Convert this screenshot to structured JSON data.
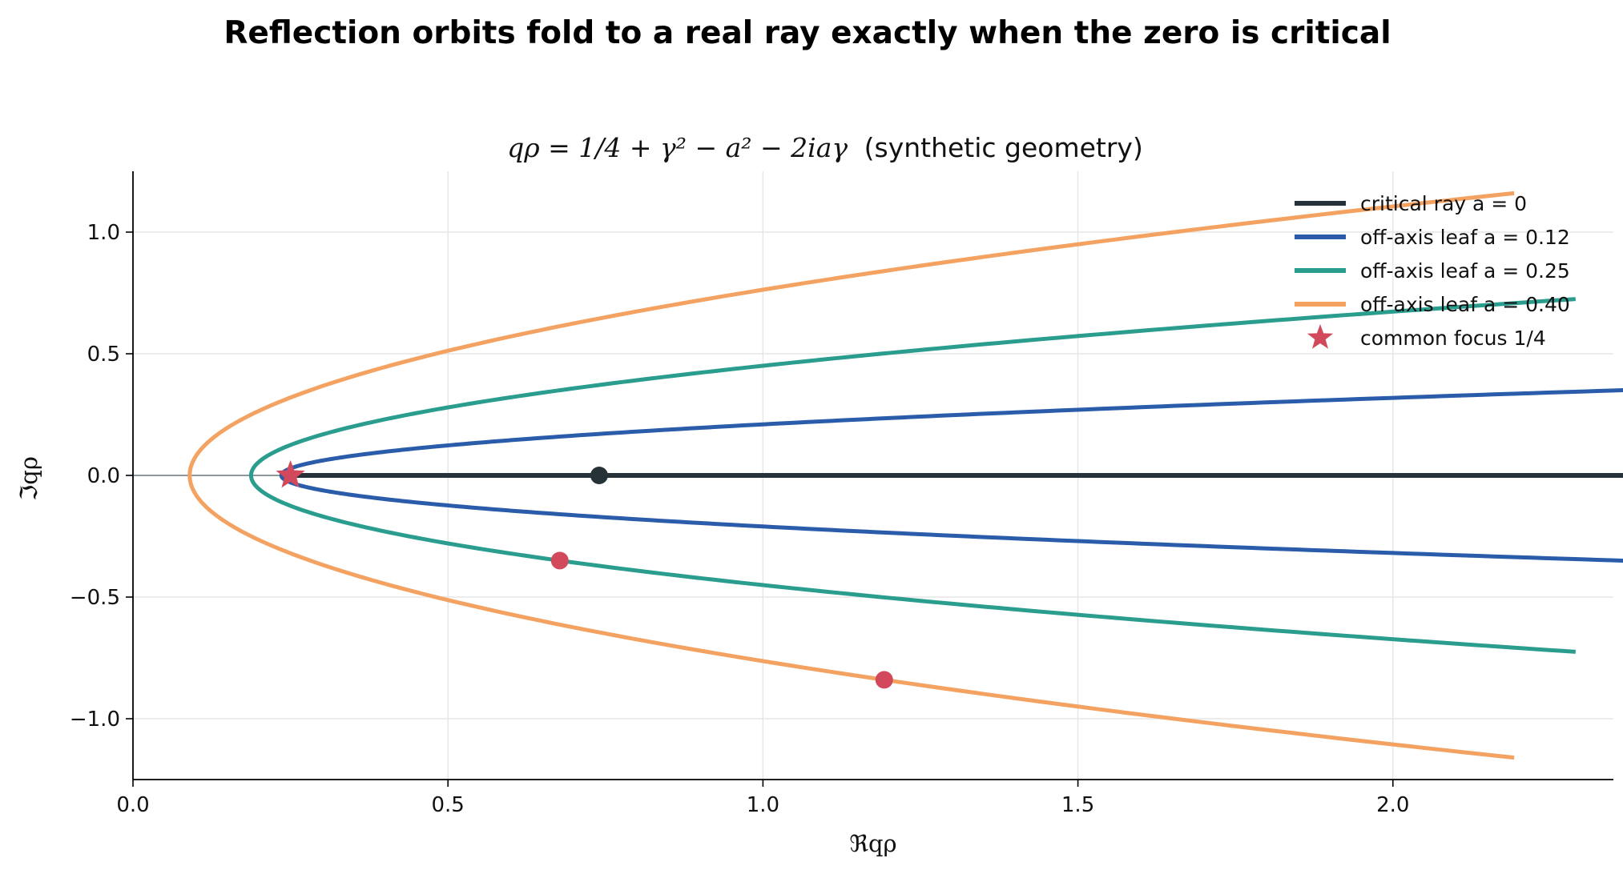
{
  "figure": {
    "suptitle": "Reflection orbits fold to a real ray exactly when the zero is critical"
  },
  "chart_data": {
    "type": "line",
    "title_math": "qρ = 1/4 + γ² − a² − 2iaγ",
    "title_suffix": "(synthetic geometry)",
    "xlabel": "ℜqρ",
    "ylabel": "ℑqρ",
    "xlim": [
      0.0,
      2.35
    ],
    "ylim": [
      -1.25,
      1.25
    ],
    "xticks": [
      0.0,
      0.5,
      1.0,
      1.5,
      2.0
    ],
    "xtick_labels": [
      "0.0",
      "0.5",
      "1.0",
      "1.5",
      "2.0"
    ],
    "yticks": [
      -1.0,
      -0.5,
      0.0,
      0.5,
      1.0
    ],
    "ytick_labels": [
      "−1.0",
      "−0.5",
      "0.0",
      "0.5",
      "1.0"
    ],
    "grid": true,
    "legend_position": "upper-right",
    "series": [
      {
        "name": "critical ray a = 0",
        "a": 0.0,
        "color": "#263238",
        "gamma_max": 1.46,
        "marker_gamma": 0.7
      },
      {
        "name": "off-axis leaf a = 0.12",
        "a": 0.12,
        "color": "#2a5caa",
        "gamma_max": 1.46
      },
      {
        "name": "off-axis leaf a = 0.25",
        "a": 0.25,
        "color": "#2a9d8f",
        "gamma_max": 1.45,
        "marker_gamma": 0.7
      },
      {
        "name": "off-axis leaf a = 0.40",
        "a": 0.4,
        "color": "#f4a261",
        "gamma_max": 1.45,
        "marker_gamma": 1.05
      }
    ],
    "focus": {
      "name": "common focus 1/4",
      "x": 0.25,
      "y": 0.0,
      "color": "#d1495b"
    },
    "marker_color": "#d1495b"
  }
}
